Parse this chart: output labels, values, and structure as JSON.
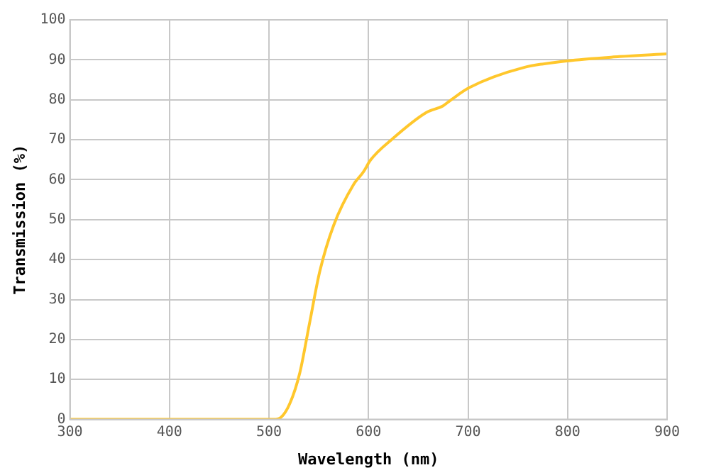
{
  "chart_data": {
    "type": "line",
    "xlabel": "Wavelength (nm)",
    "ylabel": "Transmission (%)",
    "x": [
      300,
      505,
      512,
      521,
      531,
      541,
      551,
      565,
      585,
      595,
      602,
      624,
      658,
      675,
      682,
      701,
      755,
      799,
      852,
      900
    ],
    "series": [
      {
        "color": "#ffc72c",
        "values": [
          0,
          0,
          0.5,
          4,
          11.7,
          24.4,
          37,
          48.6,
          58.8,
          62,
          64.9,
          70.2,
          76.8,
          78.5,
          79.8,
          83,
          88,
          89.7,
          90.8,
          91.5
        ]
      }
    ],
    "xlim": [
      300,
      900
    ],
    "xticks": [
      300,
      400,
      500,
      600,
      700,
      800,
      900
    ],
    "ylim": [
      0,
      100
    ],
    "yticks": [
      0,
      10,
      20,
      30,
      40,
      50,
      60,
      70,
      80,
      90,
      100
    ],
    "grid": true,
    "legend": false,
    "marker": "none",
    "line_style": "solid"
  }
}
